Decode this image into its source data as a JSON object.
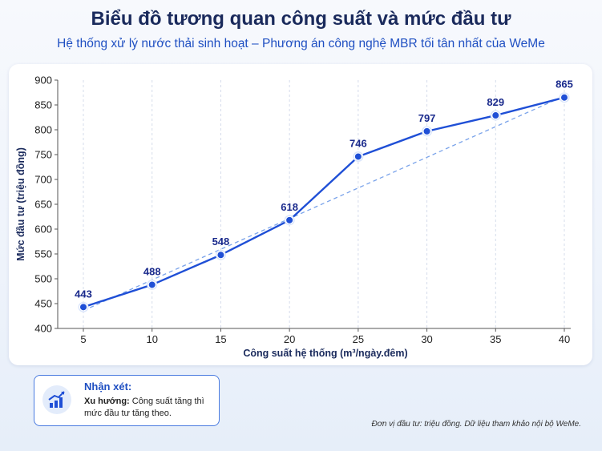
{
  "header": {
    "title": "Biểu đồ tương quan công suất và mức đầu tư",
    "subtitle": "Hệ thống xử lý nước thải sinh hoạt – Phương án công nghệ MBR tối tân nhất của WeMe"
  },
  "chart_data": {
    "type": "line",
    "title": "Biểu đồ tương quan công suất và mức đầu tư",
    "subtitle": "Hệ thống xử lý nước thải sinh hoạt – Phương án công nghệ MBR tối tân nhất của WeMe",
    "xlabel": "Công suất hệ thống (m³/ngày.đêm)",
    "ylabel": "Mức đầu tư (triệu đồng)",
    "x": [
      5,
      10,
      15,
      20,
      25,
      30,
      35,
      40
    ],
    "series": [
      {
        "values": [
          443,
          488,
          548,
          618,
          746,
          797,
          829,
          865
        ],
        "color": "#1f4fd6"
      }
    ],
    "trendline": {
      "from": [
        5,
        436
      ],
      "to": [
        40,
        868
      ],
      "color": "#7aa3ea",
      "style": "dashed"
    },
    "ylim": [
      400,
      900
    ],
    "yticks": [
      400,
      450,
      500,
      550,
      600,
      650,
      700,
      750,
      800,
      850,
      900
    ],
    "xlim": [
      5,
      40
    ],
    "grid": "vertical dashed",
    "legend": "none",
    "data_labels": true
  },
  "note": {
    "icon": "trend-chart-icon",
    "title": "Nhận xét:",
    "bold_label": "Xu hướng:",
    "text": " Công suất tăng thì mức đầu tư tăng theo."
  },
  "footnote": "Đơn vị đầu tư: triệu đồng. Dữ liệu tham khảo nội bộ WeMe."
}
